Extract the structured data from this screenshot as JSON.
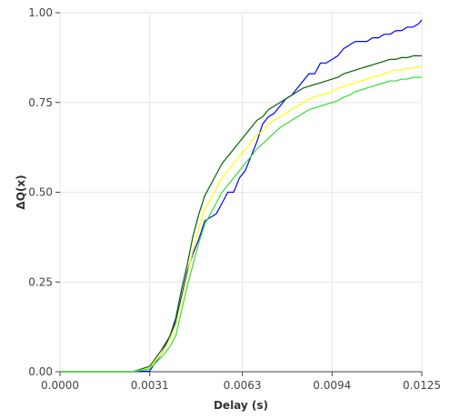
{
  "chart_data": {
    "type": "line",
    "title": "",
    "xlabel": "Delay (s)",
    "ylabel": "ΔQ(x)",
    "xlim": [
      0,
      0.0125
    ],
    "ylim": [
      0,
      1
    ],
    "grid": true,
    "legend": "none",
    "x_ticks": [
      {
        "value": 0,
        "label": "0.0000"
      },
      {
        "value": 0.0031,
        "label": "0.0031"
      },
      {
        "value": 0.0063,
        "label": "0.0063"
      },
      {
        "value": 0.0094,
        "label": "0.0094"
      },
      {
        "value": 0.0125,
        "label": "0.0125"
      }
    ],
    "y_ticks": [
      {
        "value": 0,
        "label": "0.00"
      },
      {
        "value": 0.25,
        "label": "0.25"
      },
      {
        "value": 0.5,
        "label": "0.50"
      },
      {
        "value": 0.75,
        "label": "0.75"
      },
      {
        "value": 1,
        "label": "1.00"
      }
    ],
    "series": [
      {
        "color": "#0000ff",
        "x": [
          0,
          0.0025,
          0.0031,
          0.0035,
          0.0038,
          0.004,
          0.0042,
          0.0044,
          0.0046,
          0.0048,
          0.005,
          0.0052,
          0.0054,
          0.0056,
          0.0058,
          0.006,
          0.0062,
          0.0064,
          0.0066,
          0.0068,
          0.007,
          0.0072,
          0.0074,
          0.0076,
          0.0078,
          0.008,
          0.0082,
          0.0084,
          0.0086,
          0.0088,
          0.009,
          0.0092,
          0.0094,
          0.0096,
          0.0098,
          0.01,
          0.0102,
          0.0104,
          0.0106,
          0.0108,
          0.011,
          0.0112,
          0.0114,
          0.0116,
          0.0118,
          0.012,
          0.0122,
          0.0124,
          0.0125
        ],
        "y": [
          0,
          0,
          0.002,
          0.05,
          0.1,
          0.14,
          0.21,
          0.28,
          0.33,
          0.37,
          0.42,
          0.43,
          0.44,
          0.47,
          0.5,
          0.5,
          0.54,
          0.56,
          0.6,
          0.64,
          0.69,
          0.71,
          0.72,
          0.74,
          0.76,
          0.77,
          0.79,
          0.81,
          0.83,
          0.83,
          0.86,
          0.86,
          0.87,
          0.88,
          0.9,
          0.91,
          0.92,
          0.92,
          0.92,
          0.93,
          0.93,
          0.94,
          0.94,
          0.95,
          0.95,
          0.96,
          0.96,
          0.97,
          0.98
        ]
      },
      {
        "color": "#006400",
        "x": [
          0,
          0.0025,
          0.0031,
          0.0035,
          0.0038,
          0.004,
          0.0042,
          0.0044,
          0.0046,
          0.0048,
          0.005,
          0.0052,
          0.0054,
          0.0056,
          0.0058,
          0.006,
          0.0062,
          0.0064,
          0.0066,
          0.0068,
          0.007,
          0.0072,
          0.0074,
          0.0076,
          0.0078,
          0.008,
          0.0082,
          0.0084,
          0.0086,
          0.0088,
          0.009,
          0.0092,
          0.0094,
          0.0096,
          0.0098,
          0.01,
          0.0102,
          0.0104,
          0.0106,
          0.0108,
          0.011,
          0.0112,
          0.0114,
          0.0116,
          0.0118,
          0.012,
          0.0122,
          0.0124,
          0.0125
        ],
        "y": [
          0,
          0,
          0.015,
          0.06,
          0.1,
          0.15,
          0.23,
          0.3,
          0.38,
          0.44,
          0.49,
          0.52,
          0.55,
          0.58,
          0.6,
          0.62,
          0.64,
          0.66,
          0.68,
          0.7,
          0.71,
          0.73,
          0.74,
          0.75,
          0.76,
          0.77,
          0.78,
          0.79,
          0.795,
          0.8,
          0.805,
          0.81,
          0.815,
          0.82,
          0.83,
          0.835,
          0.84,
          0.845,
          0.85,
          0.855,
          0.86,
          0.865,
          0.87,
          0.87,
          0.875,
          0.875,
          0.88,
          0.88,
          0.88
        ]
      },
      {
        "color": "#ffff00",
        "x": [
          0,
          0.0025,
          0.0031,
          0.0035,
          0.0038,
          0.004,
          0.0042,
          0.0044,
          0.0046,
          0.0048,
          0.005,
          0.0052,
          0.0054,
          0.0056,
          0.0058,
          0.006,
          0.0062,
          0.0064,
          0.0066,
          0.0068,
          0.007,
          0.0072,
          0.0074,
          0.0076,
          0.0078,
          0.008,
          0.0082,
          0.0084,
          0.0086,
          0.0088,
          0.009,
          0.0092,
          0.0094,
          0.0096,
          0.0098,
          0.01,
          0.0102,
          0.0104,
          0.0106,
          0.0108,
          0.011,
          0.0112,
          0.0114,
          0.0116,
          0.0118,
          0.012,
          0.0122,
          0.0124,
          0.0125
        ],
        "y": [
          0,
          0,
          0.01,
          0.05,
          0.09,
          0.13,
          0.2,
          0.27,
          0.34,
          0.4,
          0.45,
          0.48,
          0.51,
          0.54,
          0.56,
          0.58,
          0.6,
          0.62,
          0.64,
          0.66,
          0.67,
          0.69,
          0.7,
          0.71,
          0.72,
          0.73,
          0.74,
          0.75,
          0.76,
          0.765,
          0.77,
          0.775,
          0.78,
          0.79,
          0.795,
          0.8,
          0.805,
          0.81,
          0.815,
          0.82,
          0.825,
          0.83,
          0.835,
          0.84,
          0.84,
          0.845,
          0.845,
          0.85,
          0.85
        ]
      },
      {
        "color": "#33dd33",
        "x": [
          0,
          0.0025,
          0.0031,
          0.0035,
          0.0038,
          0.004,
          0.0042,
          0.0044,
          0.0046,
          0.0048,
          0.005,
          0.0052,
          0.0054,
          0.0056,
          0.0058,
          0.006,
          0.0062,
          0.0064,
          0.0066,
          0.0068,
          0.007,
          0.0072,
          0.0074,
          0.0076,
          0.0078,
          0.008,
          0.0082,
          0.0084,
          0.0086,
          0.0088,
          0.009,
          0.0092,
          0.0094,
          0.0096,
          0.0098,
          0.01,
          0.0102,
          0.0104,
          0.0106,
          0.0108,
          0.011,
          0.0112,
          0.0114,
          0.0116,
          0.0118,
          0.012,
          0.0122,
          0.0124,
          0.0125
        ],
        "y": [
          0,
          0,
          0.008,
          0.04,
          0.07,
          0.1,
          0.17,
          0.24,
          0.3,
          0.36,
          0.41,
          0.44,
          0.47,
          0.5,
          0.52,
          0.54,
          0.56,
          0.58,
          0.6,
          0.62,
          0.635,
          0.65,
          0.665,
          0.68,
          0.69,
          0.7,
          0.71,
          0.72,
          0.73,
          0.735,
          0.74,
          0.745,
          0.75,
          0.755,
          0.765,
          0.77,
          0.78,
          0.785,
          0.79,
          0.795,
          0.8,
          0.805,
          0.81,
          0.81,
          0.815,
          0.815,
          0.82,
          0.82,
          0.82
        ]
      }
    ]
  }
}
